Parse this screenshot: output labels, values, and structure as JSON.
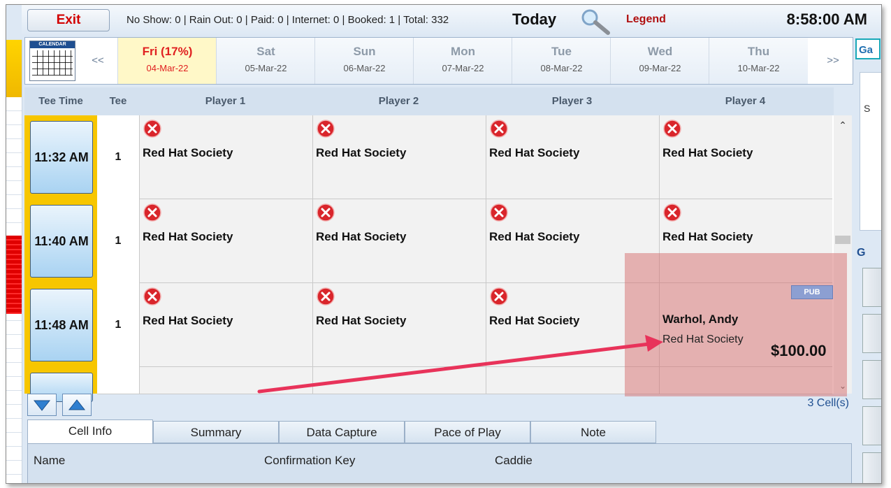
{
  "topbar": {
    "exit_label": "Exit",
    "stats": "No Show: 0 | Rain Out: 0 | Paid: 0 | Internet: 0 | Booked: 1 | Total: 332",
    "today_label": "Today",
    "legend_label": "Legend",
    "clock": "8:58:00 AM"
  },
  "daynav": {
    "calendar_label": "CALENDAR",
    "prev": "<<",
    "next": ">>",
    "days": [
      {
        "name": "Fri (17%)",
        "date": "04-Mar-22"
      },
      {
        "name": "Sat",
        "date": "05-Mar-22"
      },
      {
        "name": "Sun",
        "date": "06-Mar-22"
      },
      {
        "name": "Mon",
        "date": "07-Mar-22"
      },
      {
        "name": "Tue",
        "date": "08-Mar-22"
      },
      {
        "name": "Wed",
        "date": "09-Mar-22"
      },
      {
        "name": "Thu",
        "date": "10-Mar-22"
      }
    ]
  },
  "grid": {
    "headers": {
      "tee_time": "Tee Time",
      "tee": "Tee",
      "p1": "Player 1",
      "p2": "Player 2",
      "p3": "Player 3",
      "p4": "Player 4"
    },
    "rows": [
      {
        "time": "11:32 AM",
        "tee": "1",
        "players": [
          "Red Hat Society",
          "Red Hat Society",
          "Red Hat Society",
          "Red Hat Society"
        ]
      },
      {
        "time": "11:40 AM",
        "tee": "1",
        "players": [
          "Red Hat Society",
          "Red Hat Society",
          "Red Hat Society",
          "Red Hat Society"
        ]
      },
      {
        "time": "11:48 AM",
        "tee": "1",
        "players": [
          "Red Hat Society",
          "Red Hat Society",
          "Red Hat Society",
          ""
        ]
      }
    ],
    "booked": {
      "badge": "PUB",
      "name": "Warhol, Andy",
      "group": "Red Hat Society",
      "price": "$100.00"
    }
  },
  "right_panel": {
    "tab_label": "Ga",
    "s_label": "S",
    "g_label": "G"
  },
  "bottom": {
    "cells_count": "3 Cell(s)",
    "tabs": [
      "Cell Info",
      "Summary",
      "Data Capture",
      "Pace of Play",
      "Note"
    ],
    "info_headers": {
      "name": "Name",
      "confirmation": "Confirmation Key",
      "caddie": "Caddie"
    }
  },
  "colors": {
    "accent": "#1f4f91",
    "exit": "#d20000",
    "active_day": "#e02020",
    "time_gold": "#f7c600",
    "highlight": "#d66e6e",
    "arrow": "#e8335a"
  }
}
